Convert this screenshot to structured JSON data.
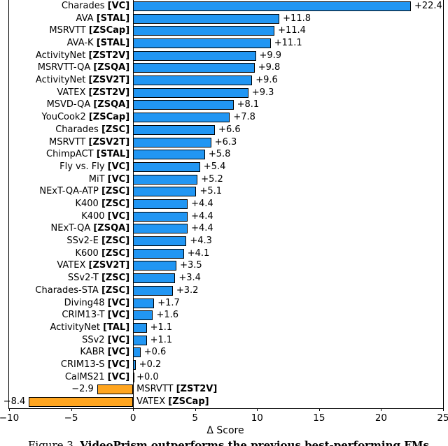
{
  "chart_data": {
    "type": "bar",
    "orientation": "horizontal",
    "title": "",
    "xlabel": "Δ Score",
    "ylabel": "",
    "xlim": [
      -10,
      25
    ],
    "xticks": [
      -10,
      -5,
      0,
      5,
      10,
      15,
      20,
      25
    ],
    "grid": false,
    "legend": "none",
    "colors": {
      "positive_bar": "#2196f3",
      "negative_bar": "#ffa51f",
      "bar_edge": "#000000"
    },
    "bars": [
      {
        "name": "Charades",
        "task": "VC",
        "value": 22.4
      },
      {
        "name": "AVA",
        "task": "STAL",
        "value": 11.8
      },
      {
        "name": "MSRVTT",
        "task": "ZSCap",
        "value": 11.4
      },
      {
        "name": "AVA-K",
        "task": "STAL",
        "value": 11.1
      },
      {
        "name": "ActivityNet",
        "task": "ZST2V",
        "value": 9.9
      },
      {
        "name": "MSRVTT-QA",
        "task": "ZSQA",
        "value": 9.8
      },
      {
        "name": "ActivityNet",
        "task": "ZSV2T",
        "value": 9.6
      },
      {
        "name": "VATEX",
        "task": "ZST2V",
        "value": 9.3
      },
      {
        "name": "MSVD-QA",
        "task": "ZSQA",
        "value": 8.1
      },
      {
        "name": "YouCook2",
        "task": "ZSCap",
        "value": 7.8
      },
      {
        "name": "Charades",
        "task": "ZSC",
        "value": 6.6
      },
      {
        "name": "MSRVTT",
        "task": "ZSV2T",
        "value": 6.3
      },
      {
        "name": "ChimpACT",
        "task": "STAL",
        "value": 5.8
      },
      {
        "name": "Fly vs. Fly",
        "task": "VC",
        "value": 5.4
      },
      {
        "name": "MiT",
        "task": "VC",
        "value": 5.2
      },
      {
        "name": "NExT-QA-ATP",
        "task": "ZSC",
        "value": 5.1
      },
      {
        "name": "K400",
        "task": "ZSC",
        "value": 4.4
      },
      {
        "name": "K400",
        "task": "VC",
        "value": 4.4
      },
      {
        "name": "NExT-QA",
        "task": "ZSQA",
        "value": 4.4
      },
      {
        "name": "SSv2-E",
        "task": "ZSC",
        "value": 4.3
      },
      {
        "name": "K600",
        "task": "ZSC",
        "value": 4.1
      },
      {
        "name": "VATEX",
        "task": "ZSV2T",
        "value": 3.5
      },
      {
        "name": "SSv2-T",
        "task": "ZSC",
        "value": 3.4
      },
      {
        "name": "Charades-STA",
        "task": "ZSC",
        "value": 3.2
      },
      {
        "name": "Diving48",
        "task": "VC",
        "value": 1.7
      },
      {
        "name": "CRIM13-T",
        "task": "VC",
        "value": 1.6
      },
      {
        "name": "ActivityNet",
        "task": "TAL",
        "value": 1.1
      },
      {
        "name": "SSv2",
        "task": "VC",
        "value": 1.1
      },
      {
        "name": "KABR",
        "task": "VC",
        "value": 0.6
      },
      {
        "name": "CRIM13-S",
        "task": "VC",
        "value": 0.2
      },
      {
        "name": "CalMS21",
        "task": "VC",
        "value": 0.0
      },
      {
        "name": "MSRVTT",
        "task": "ZST2V",
        "value": -2.9
      },
      {
        "name": "VATEX",
        "task": "ZSCap",
        "value": -8.4
      }
    ]
  },
  "caption": {
    "label": "Figure 3.",
    "text": "VideoPrism outperforms the previous best-performing FMs"
  }
}
